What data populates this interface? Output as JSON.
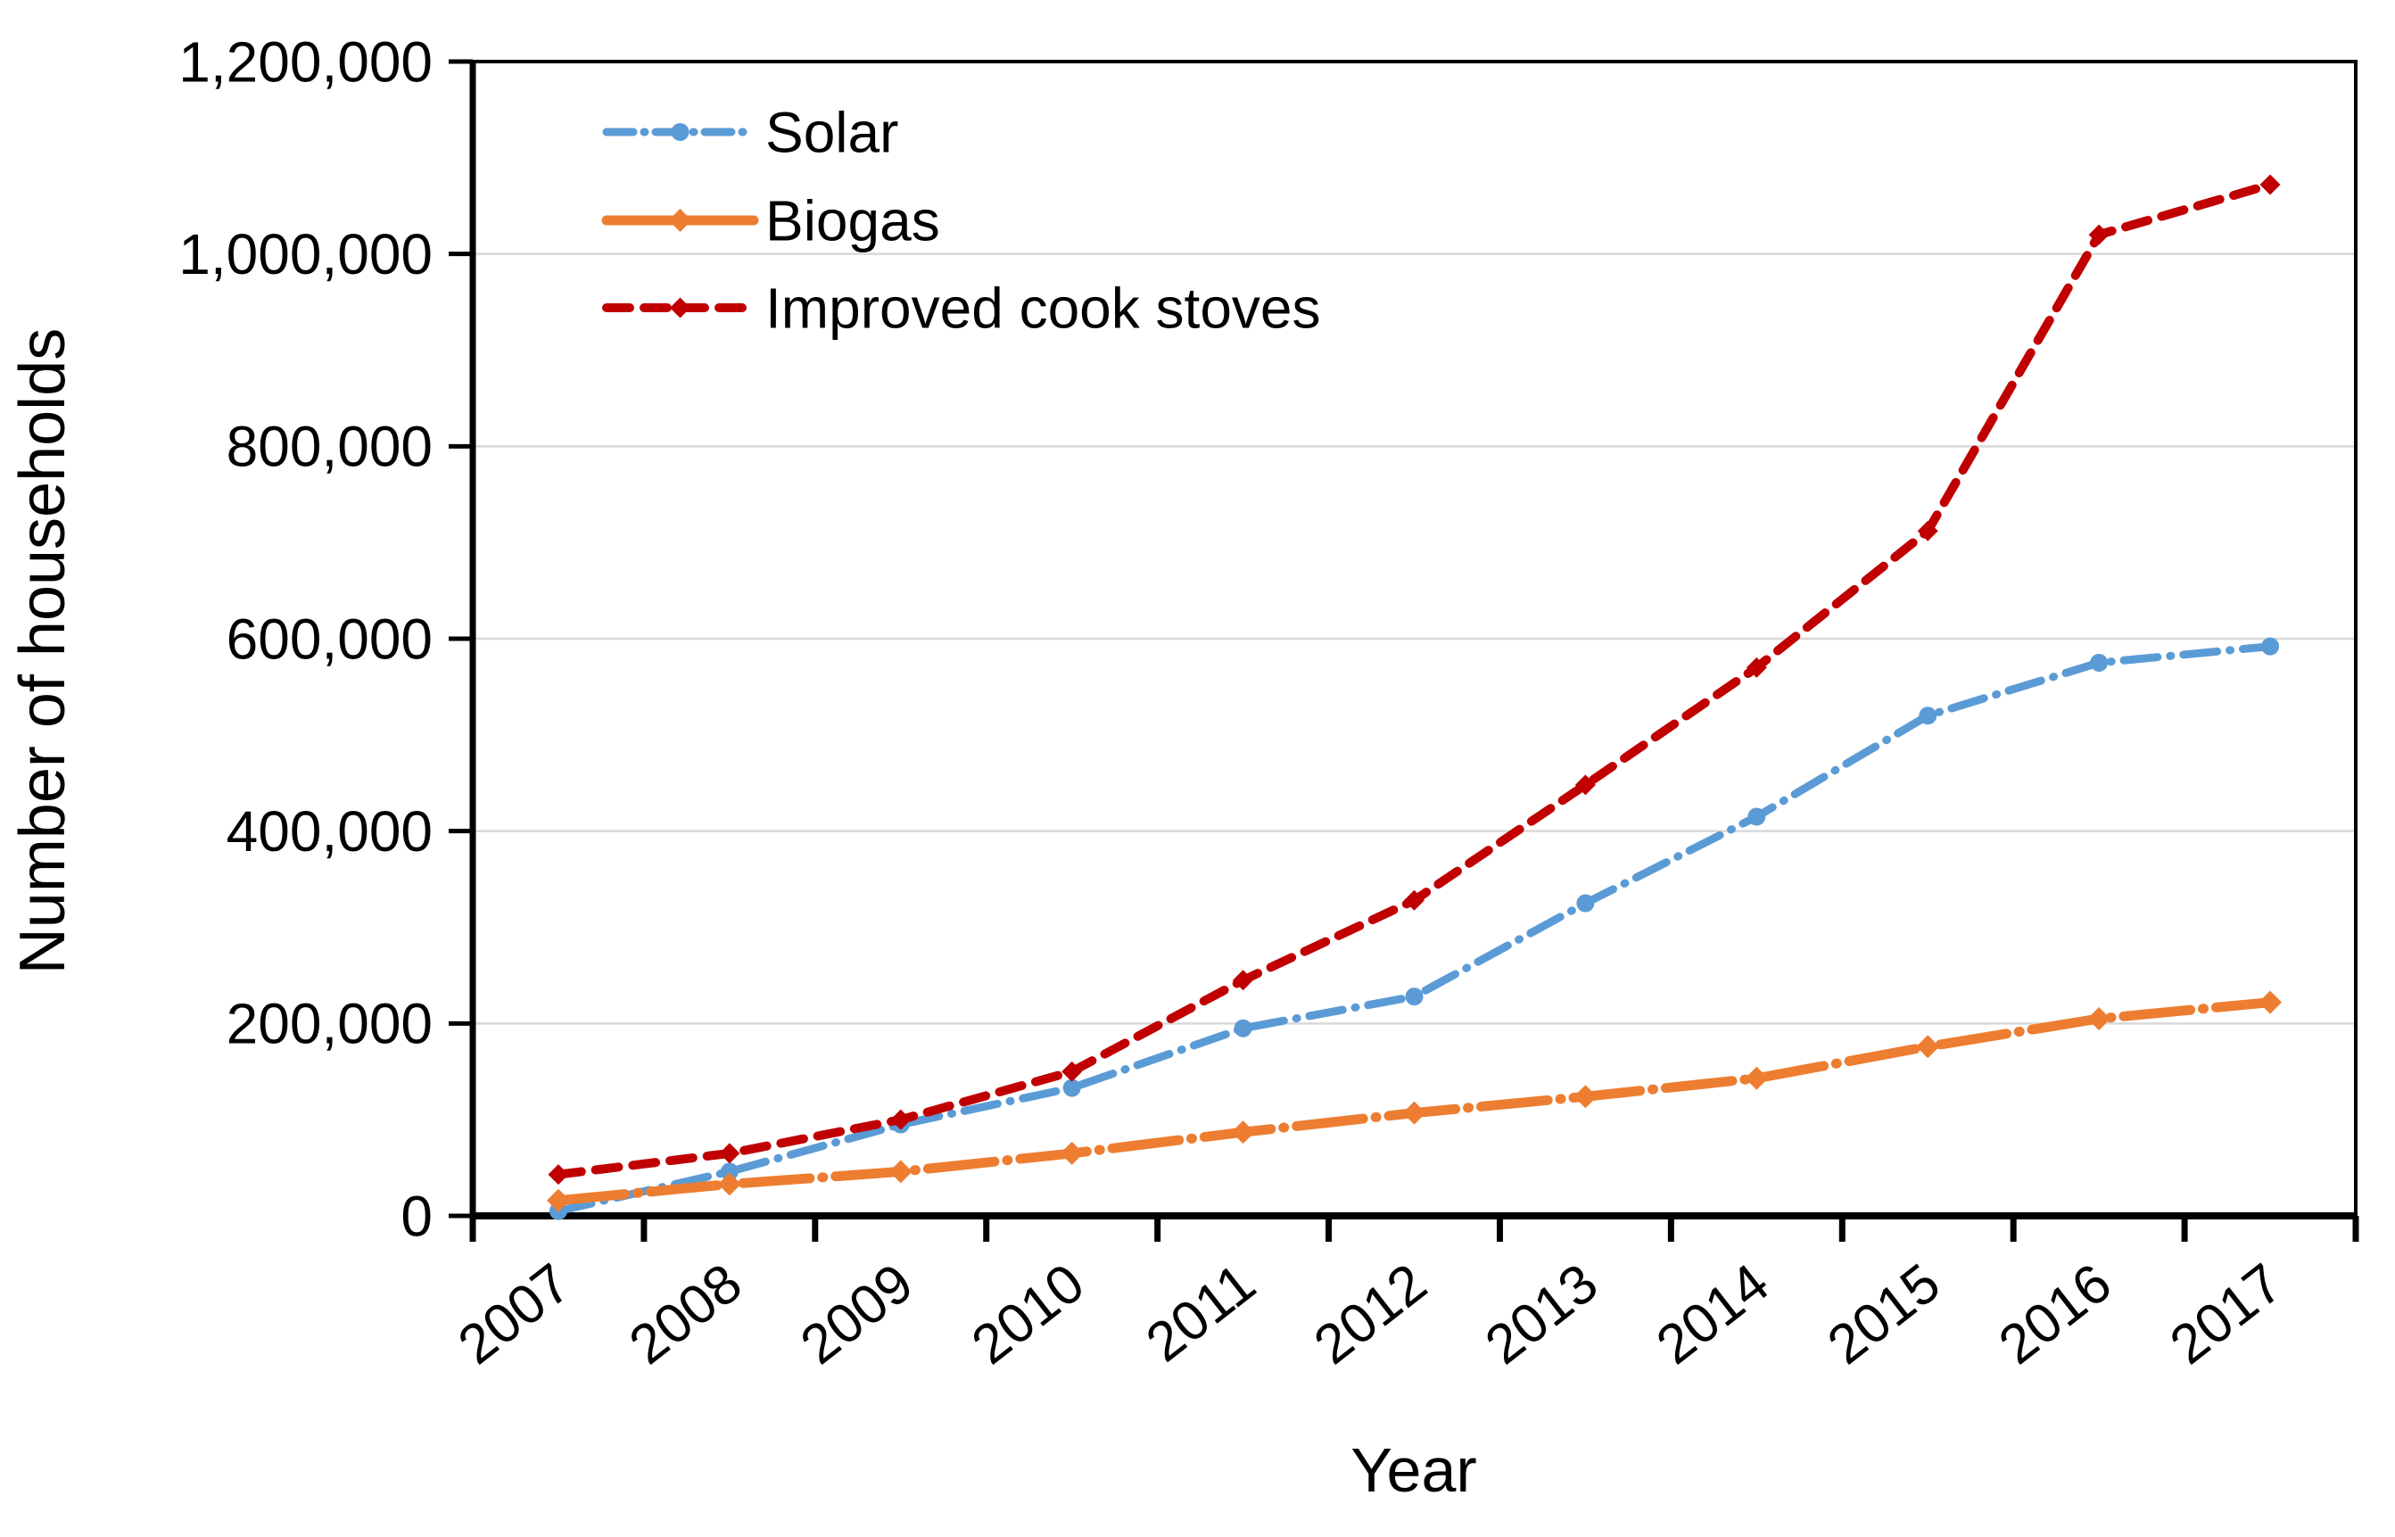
{
  "chart_data": {
    "type": "line",
    "title": "",
    "xlabel": "Year",
    "ylabel": "Number of households",
    "categories": [
      "2007",
      "2008",
      "2009",
      "2010",
      "2011",
      "2012",
      "2013",
      "2014",
      "2015",
      "2016",
      "2017"
    ],
    "series": [
      {
        "name": "Solar",
        "color": "#5B9BD5",
        "line_style": "dash-dot",
        "marker": "circle",
        "values": [
          5000,
          46000,
          95000,
          133000,
          195000,
          228000,
          325000,
          415000,
          520000,
          575000,
          592000
        ]
      },
      {
        "name": "Biogas",
        "color": "#ED7D31",
        "line_style": "long-dash-dot",
        "marker": "diamond",
        "values": [
          16000,
          33000,
          46000,
          65000,
          87000,
          107000,
          124000,
          143000,
          176000,
          205000,
          222000
        ]
      },
      {
        "name": "Improved cook stoves",
        "color": "#C00000",
        "line_style": "dash",
        "marker": "diamond",
        "values": [
          43000,
          65000,
          100000,
          150000,
          245000,
          328000,
          448000,
          570000,
          712000,
          1020000,
          1072000
        ]
      }
    ],
    "ylim": [
      0,
      1200000
    ],
    "ytick_step": 200000,
    "ytick_labels": [
      "0",
      "200,000",
      "400,000",
      "600,000",
      "800,000",
      "1,000,000",
      "1,200,000"
    ],
    "grid": true,
    "gridline_color": "#D9D9D9",
    "axis_color": "#000000",
    "legend_position": "top-left-inside"
  }
}
